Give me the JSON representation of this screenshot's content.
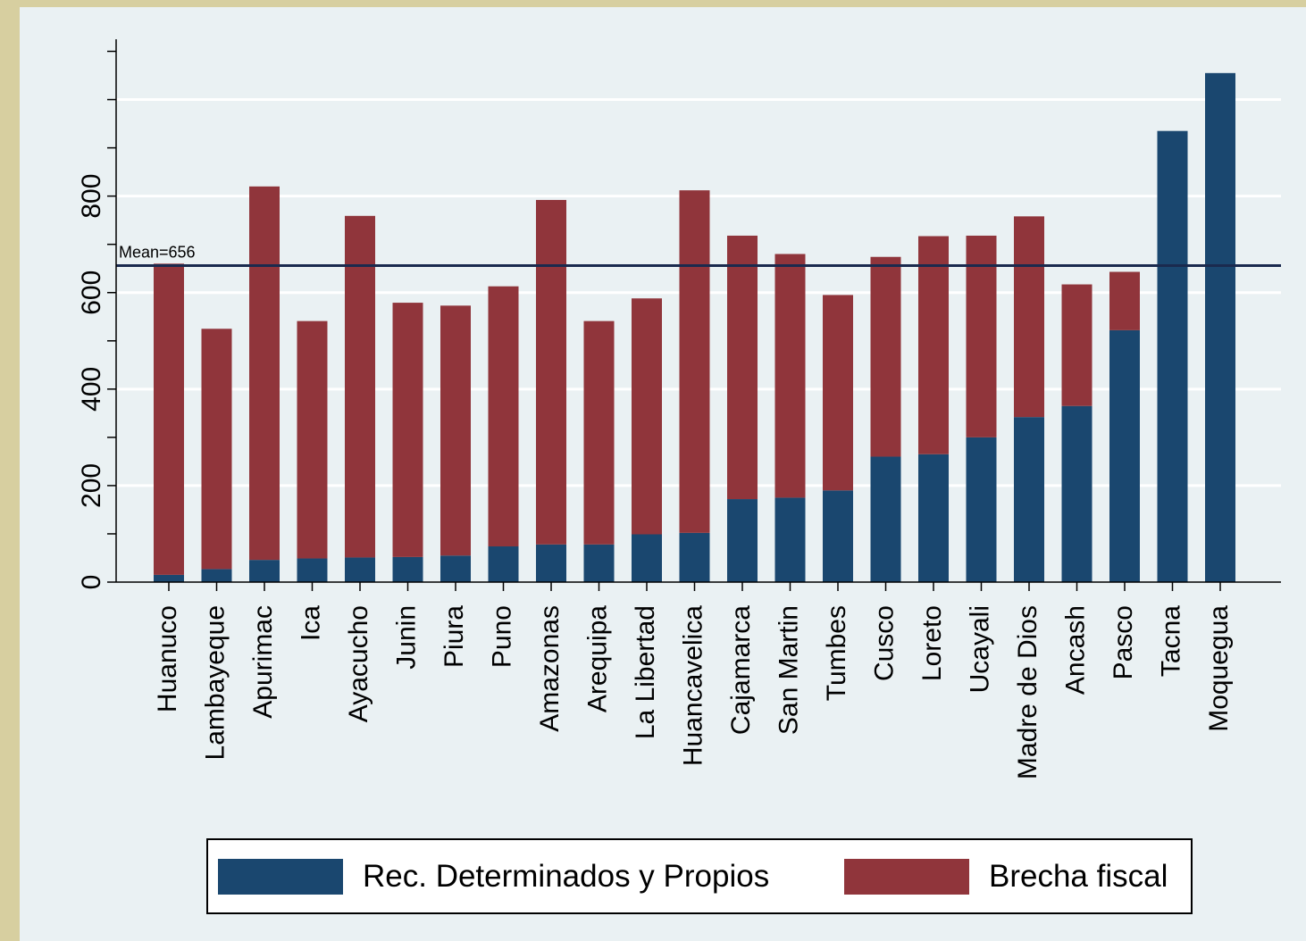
{
  "chart_data": {
    "type": "bar",
    "stacked": true,
    "categories": [
      "Huanuco",
      "Lambayeque",
      "Apurimac",
      "Ica",
      "Ayacucho",
      "Junin",
      "Piura",
      "Puno",
      "Amazonas",
      "Arequipa",
      "La Libertad",
      "Huancavelica",
      "Cajamarca",
      "San Martin",
      "Tumbes",
      "Cusco",
      "Loreto",
      "Ucayali",
      "Madre de Dios",
      "Ancash",
      "Pasco",
      "Tacna",
      "Moquegua"
    ],
    "series": [
      {
        "name": "Rec. Determinados y Propios",
        "color": "#1a476f",
        "values": [
          15,
          27,
          46,
          49,
          51,
          52,
          55,
          74,
          78,
          78,
          99,
          102,
          172,
          175,
          190,
          260,
          265,
          300,
          342,
          365,
          522,
          935,
          1055
        ]
      },
      {
        "name": "Brecha fiscal",
        "color": "#90353b",
        "values": [
          645,
          498,
          774,
          492,
          708,
          527,
          518,
          539,
          714,
          463,
          489,
          710,
          546,
          505,
          405,
          414,
          452,
          418,
          416,
          252,
          121,
          0,
          0
        ]
      }
    ],
    "yticks": [
      0,
      200,
      400,
      600,
      800
    ],
    "ylim": [
      0,
      1125
    ],
    "mean_line": {
      "value": 656,
      "label": "Mean=656"
    },
    "grid": true,
    "legend_position": "bottom"
  }
}
